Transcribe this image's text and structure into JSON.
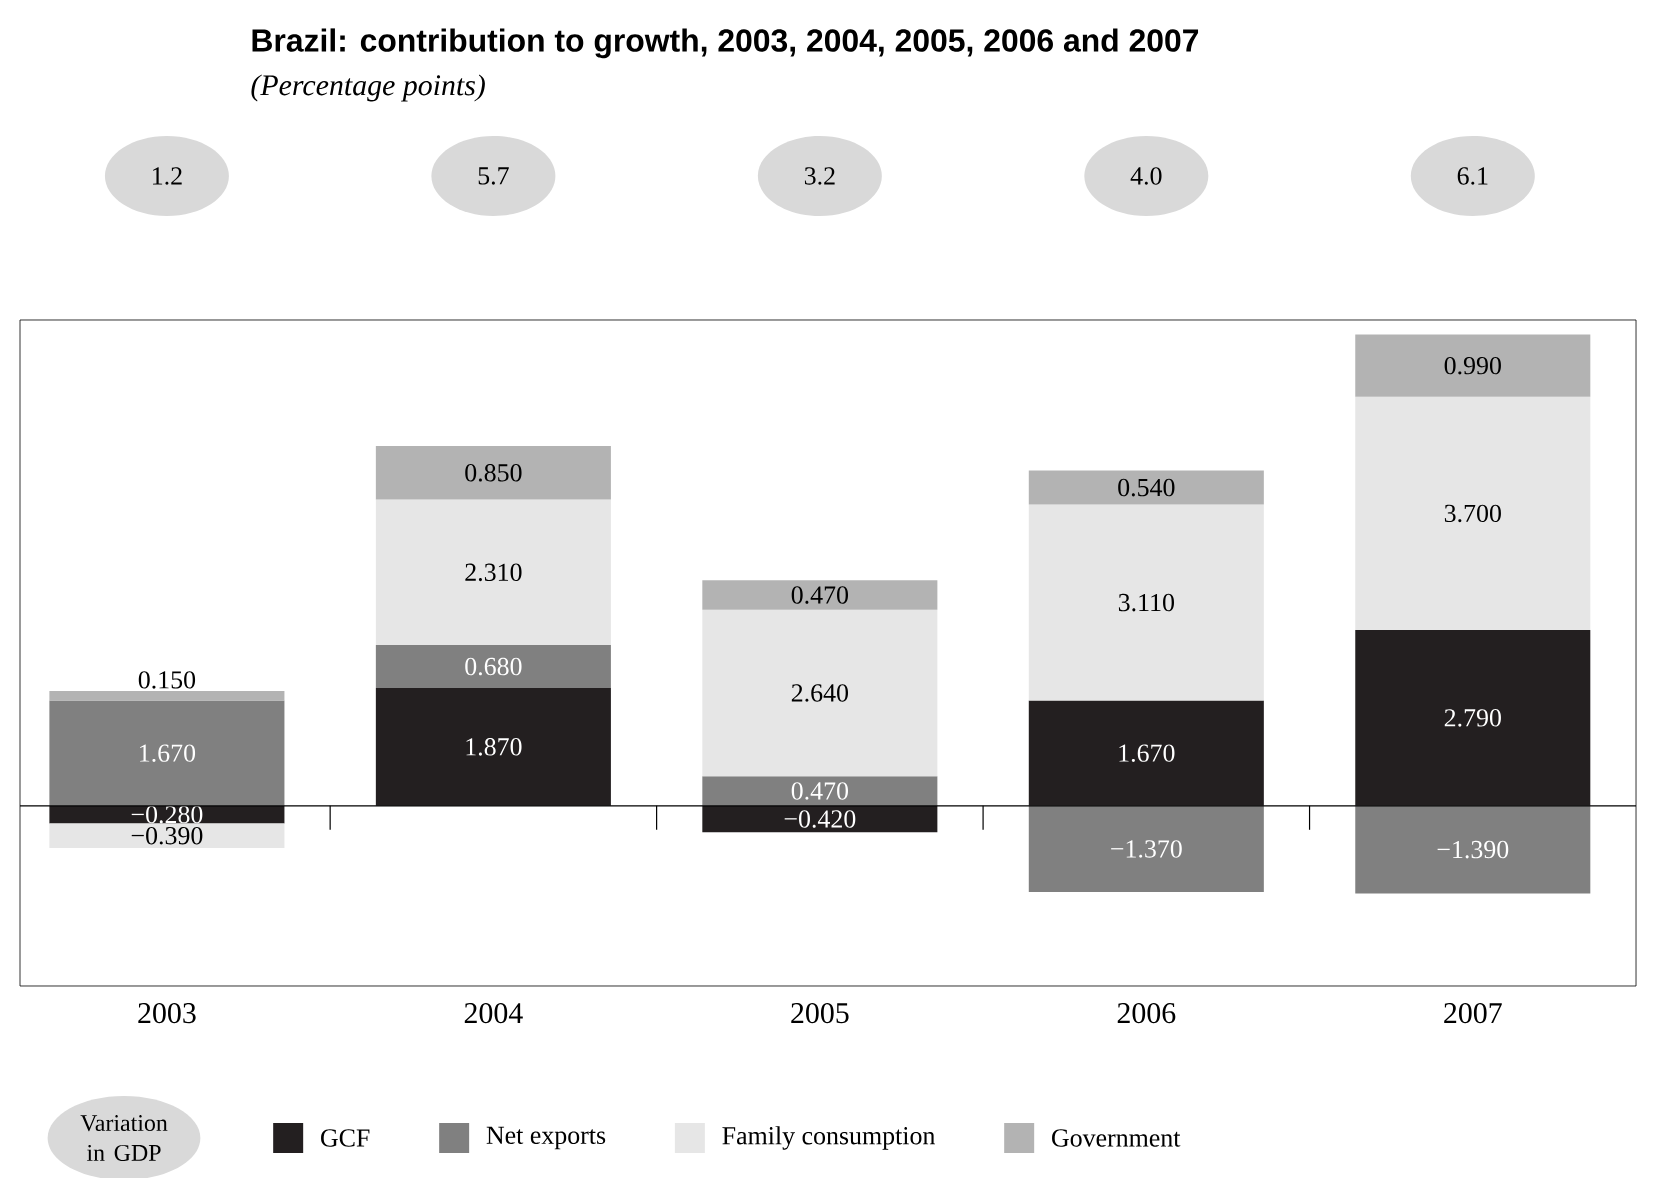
{
  "chart_data": {
    "type": "bar",
    "stacked": true,
    "title": "Brazil: contribution to growth, 2003, 2004, 2005, 2006 and 2007",
    "subtitle": "(Percentage points)",
    "categories": [
      "2003",
      "2004",
      "2005",
      "2006",
      "2007"
    ],
    "series": [
      {
        "name": "GCF",
        "color": "#231f20",
        "values": [
          -0.28,
          1.87,
          -0.42,
          1.67,
          2.79
        ],
        "value_labels": [
          "−0.280",
          "1.870",
          "−0.420",
          "1.670",
          "2.790"
        ]
      },
      {
        "name": "Net exports",
        "color": "#808080",
        "values": [
          1.67,
          0.68,
          0.47,
          -1.37,
          -1.39
        ],
        "value_labels": [
          "1.670",
          "0.680",
          "0.470",
          "−1.370",
          "−1.390"
        ]
      },
      {
        "name": "Family consumption",
        "color": "#e6e6e6",
        "values": [
          -0.39,
          2.31,
          2.64,
          3.11,
          3.7
        ],
        "value_labels": [
          "−0.390",
          "2.310",
          "2.640",
          "3.110",
          "3.700"
        ]
      },
      {
        "name": "Government",
        "color": "#b3b3b3",
        "values": [
          0.15,
          0.85,
          0.47,
          0.54,
          0.99
        ],
        "value_labels": [
          "0.150",
          "0.850",
          "0.470",
          "0.540",
          "0.990"
        ]
      }
    ],
    "annotations": [
      "Variation in GDP",
      "1.2",
      "5.7",
      "3.2",
      "4.0",
      "6.1"
    ],
    "ylim": [
      -2.86,
      7.71
    ],
    "ref_lines": [
      {
        "axis": "y",
        "value": 0
      }
    ],
    "tick_labels": "x",
    "data_labels": true,
    "legend": "bottom",
    "grid": false
  }
}
